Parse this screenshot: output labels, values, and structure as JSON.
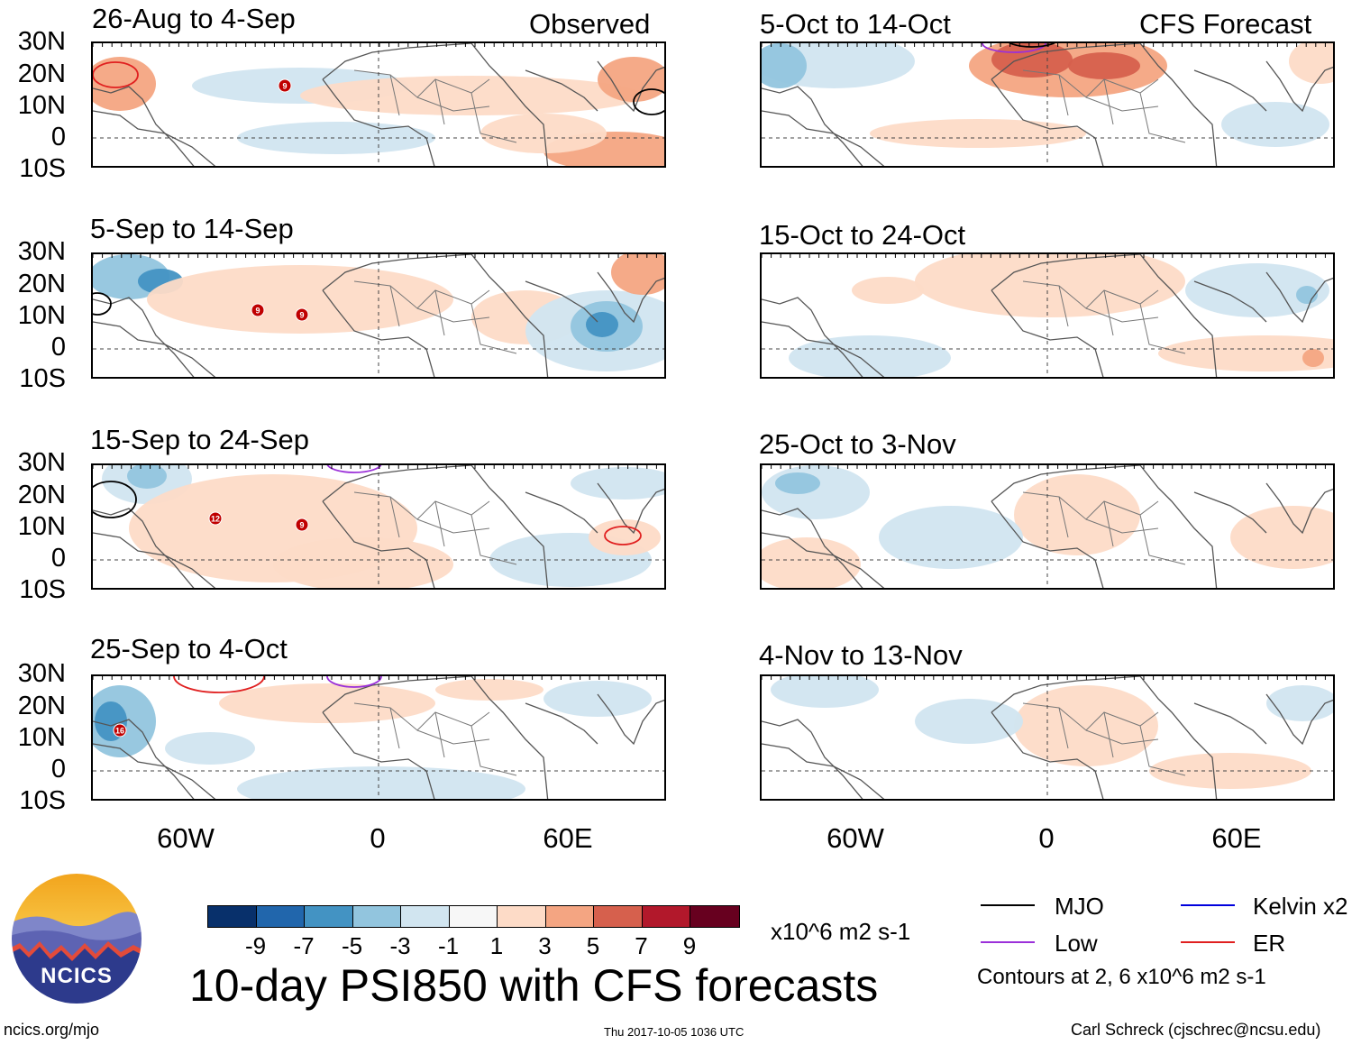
{
  "header": {
    "left_label": "Observed",
    "right_label": "CFS Forecast"
  },
  "panels": [
    {
      "title": "26-Aug to 4-Sep"
    },
    {
      "title": "5-Sep to 14-Sep"
    },
    {
      "title": "15-Sep to 24-Sep"
    },
    {
      "title": "25-Sep to 4-Oct"
    },
    {
      "title": "5-Oct to 14-Oct"
    },
    {
      "title": "15-Oct to 24-Oct"
    },
    {
      "title": "25-Oct to 3-Nov"
    },
    {
      "title": "4-Nov to 13-Nov"
    }
  ],
  "axes": {
    "lat_labels": [
      "30N",
      "20N",
      "10N",
      "0",
      "10S"
    ],
    "lon_labels": [
      "60W",
      "0",
      "60E"
    ]
  },
  "storm_markers": [
    "9",
    "9",
    "9",
    "12",
    "9",
    "16"
  ],
  "colorbar": {
    "colors": [
      "#08306b",
      "#2166ac",
      "#4393c3",
      "#92c5de",
      "#d1e5f0",
      "#f7f7f7",
      "#fddbc7",
      "#f4a582",
      "#d6604d",
      "#b2182b",
      "#67001f"
    ],
    "ticks": [
      "-9",
      "-7",
      "-5",
      "-3",
      "-1",
      "1",
      "3",
      "5",
      "7",
      "9"
    ],
    "units": "x10^6 m2 s-1"
  },
  "legend": {
    "items": [
      {
        "label": "MJO",
        "color": "#000000"
      },
      {
        "label": "Kelvin x2",
        "color": "#0000dd"
      },
      {
        "label": "Low",
        "color": "#9b30d9"
      },
      {
        "label": "ER",
        "color": "#e02020"
      }
    ],
    "note": "Contours at 2, 6 x10^6 m2 s-1"
  },
  "main_title": "10-day PSI850 with CFS forecasts",
  "logo": {
    "text": "NCICS"
  },
  "footer": {
    "url": "ncics.org/mjo",
    "timestamp": "Thu 2017-10-05 1036 UTC",
    "credit": "Carl Schreck (cjschrec@ncsu.edu)"
  }
}
